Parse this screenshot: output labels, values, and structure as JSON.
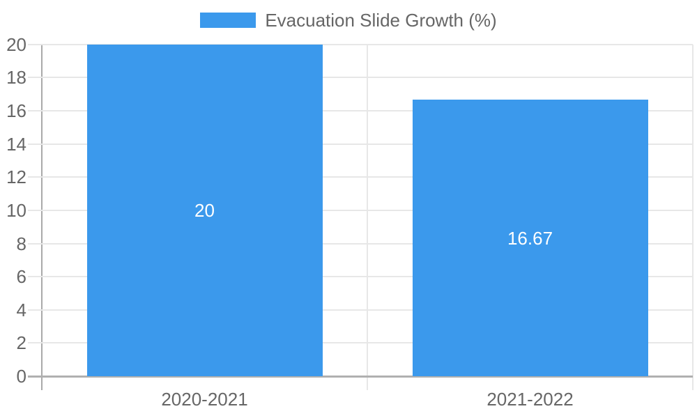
{
  "chart_data": {
    "type": "bar",
    "legend_label": "Evacuation Slide Growth (%)",
    "legend_position": "top",
    "categories": [
      "2020-2021",
      "2021-2022"
    ],
    "values": [
      20,
      16.67
    ],
    "value_labels": [
      "20",
      "16.67"
    ],
    "series": [
      {
        "name": "Evacuation Slide Growth (%)",
        "values": [
          20,
          16.67
        ]
      }
    ],
    "title": "",
    "xlabel": "",
    "ylabel": "",
    "ylim": [
      0,
      20
    ],
    "ytick_step": 2,
    "yticks": [
      0,
      2,
      4,
      6,
      8,
      10,
      12,
      14,
      16,
      18,
      20
    ],
    "ytick_labels": [
      "0",
      "2",
      "4",
      "6",
      "8",
      "10",
      "12",
      "14",
      "16",
      "18",
      "20"
    ],
    "grid": true,
    "colors": {
      "bar": "#3B99EC",
      "gridline": "#e7e7e7",
      "axis_line": "#a9a9a9",
      "baseline": "#b0b0b0",
      "tick_text": "#666666",
      "value_label_text": "#ffffff",
      "background": "#ffffff"
    }
  }
}
